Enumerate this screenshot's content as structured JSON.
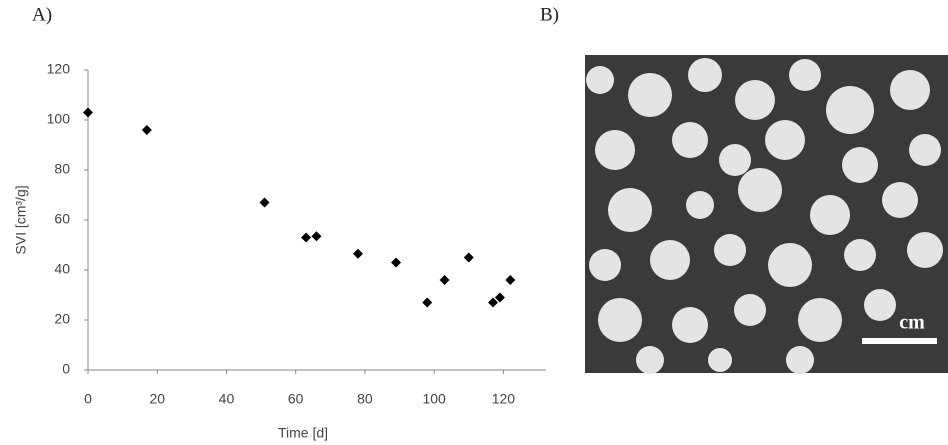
{
  "panels": [
    "A)",
    "B)"
  ],
  "photo": {
    "scale_label": "cm"
  },
  "chart_data": {
    "type": "scatter",
    "x_label": "Time [d]",
    "y_label": "SVI [cm³/g]",
    "x": [
      0,
      17,
      51,
      63,
      66,
      78,
      89,
      98,
      103,
      110,
      117,
      119,
      122
    ],
    "values": [
      103,
      96,
      67,
      53,
      53.5,
      46.5,
      43,
      27,
      36,
      45,
      27,
      29,
      36
    ],
    "color": "#000000",
    "xlim": [
      0,
      130
    ],
    "xticks": [
      0,
      20,
      40,
      60,
      80,
      100,
      120
    ],
    "ylim": [
      0,
      120
    ],
    "yticks": [
      0,
      20,
      40,
      60,
      80,
      100,
      120
    ],
    "grid": false
  }
}
